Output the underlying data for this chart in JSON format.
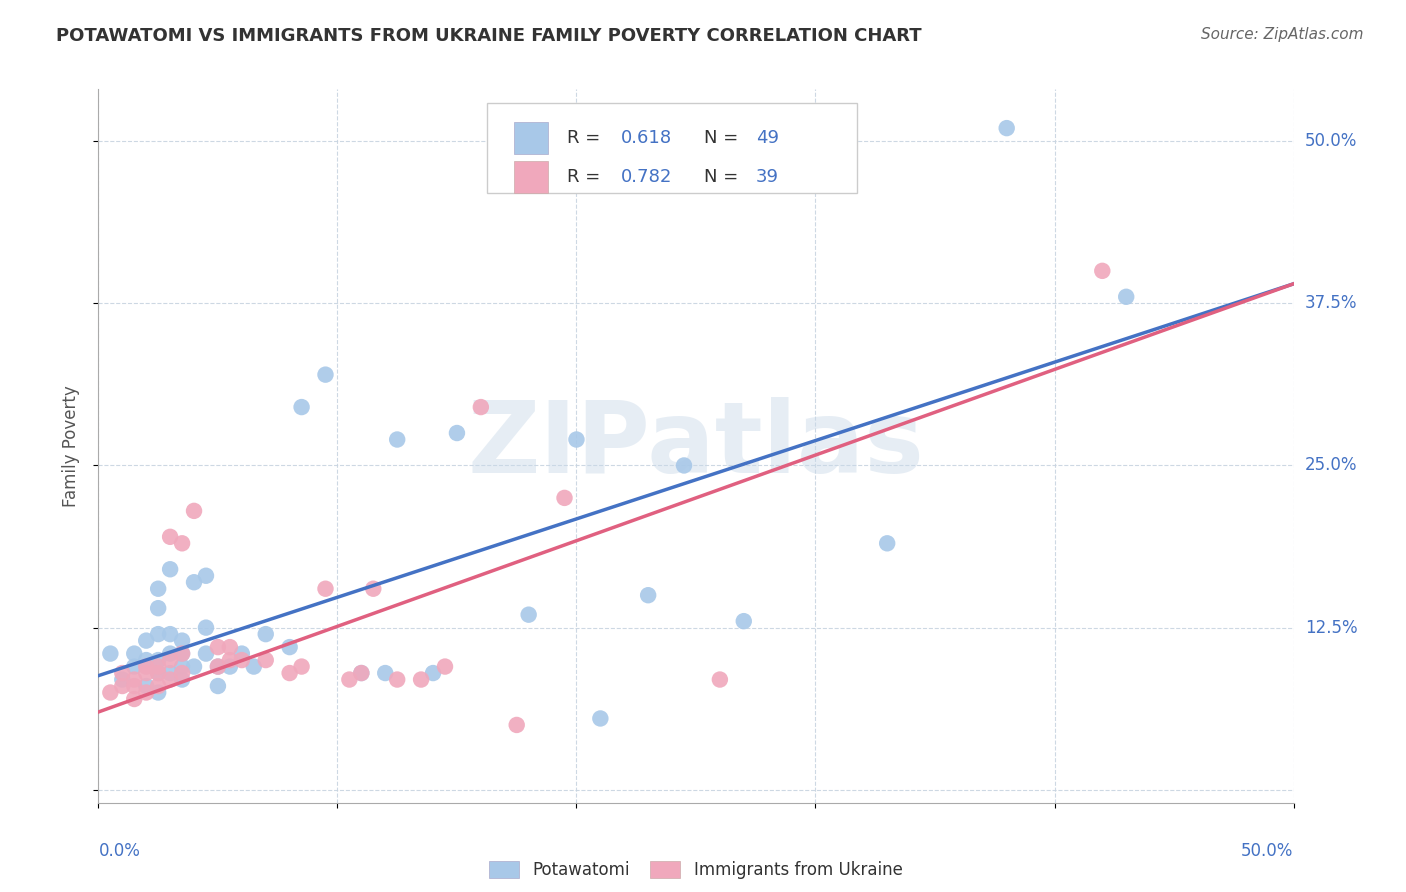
{
  "title": "POTAWATOMI VS IMMIGRANTS FROM UKRAINE FAMILY POVERTY CORRELATION CHART",
  "source": "Source: ZipAtlas.com",
  "ylabel": "Family Poverty",
  "watermark": "ZIPatlas",
  "xlim": [
    0.0,
    0.5
  ],
  "ylim": [
    -0.01,
    0.54
  ],
  "yticks": [
    0.0,
    0.125,
    0.25,
    0.375,
    0.5
  ],
  "ytick_labels": [
    "",
    "12.5%",
    "25.0%",
    "37.5%",
    "50.0%"
  ],
  "xtick_positions": [
    0.0,
    0.1,
    0.2,
    0.3,
    0.4,
    0.5
  ],
  "legend_line1": "R =  0.618   N = 49",
  "legend_line2": "R =  0.782   N = 39",
  "legend_R1": " 0.618",
  "legend_N1": "49",
  "legend_R2": " 0.782",
  "legend_N2": "39",
  "blue_color": "#a8c8e8",
  "pink_color": "#f0a8bc",
  "blue_line_color": "#4472c4",
  "pink_line_color": "#e06080",
  "text_blue": "#4472c4",
  "text_dark": "#333333",
  "grid_color": "#c8d4e0",
  "background": "#ffffff",
  "blue_scatter": [
    [
      0.005,
      0.105
    ],
    [
      0.01,
      0.085
    ],
    [
      0.015,
      0.095
    ],
    [
      0.015,
      0.105
    ],
    [
      0.02,
      0.08
    ],
    [
      0.02,
      0.1
    ],
    [
      0.02,
      0.115
    ],
    [
      0.025,
      0.075
    ],
    [
      0.025,
      0.09
    ],
    [
      0.025,
      0.1
    ],
    [
      0.025,
      0.12
    ],
    [
      0.025,
      0.14
    ],
    [
      0.025,
      0.155
    ],
    [
      0.03,
      0.09
    ],
    [
      0.03,
      0.105
    ],
    [
      0.03,
      0.12
    ],
    [
      0.03,
      0.17
    ],
    [
      0.035,
      0.085
    ],
    [
      0.035,
      0.095
    ],
    [
      0.035,
      0.105
    ],
    [
      0.035,
      0.115
    ],
    [
      0.04,
      0.095
    ],
    [
      0.04,
      0.16
    ],
    [
      0.045,
      0.105
    ],
    [
      0.045,
      0.125
    ],
    [
      0.045,
      0.165
    ],
    [
      0.05,
      0.08
    ],
    [
      0.05,
      0.095
    ],
    [
      0.055,
      0.095
    ],
    [
      0.06,
      0.105
    ],
    [
      0.065,
      0.095
    ],
    [
      0.07,
      0.12
    ],
    [
      0.08,
      0.11
    ],
    [
      0.085,
      0.295
    ],
    [
      0.095,
      0.32
    ],
    [
      0.11,
      0.09
    ],
    [
      0.12,
      0.09
    ],
    [
      0.125,
      0.27
    ],
    [
      0.14,
      0.09
    ],
    [
      0.15,
      0.275
    ],
    [
      0.18,
      0.135
    ],
    [
      0.2,
      0.27
    ],
    [
      0.21,
      0.055
    ],
    [
      0.23,
      0.15
    ],
    [
      0.245,
      0.25
    ],
    [
      0.27,
      0.13
    ],
    [
      0.33,
      0.19
    ],
    [
      0.38,
      0.51
    ],
    [
      0.43,
      0.38
    ]
  ],
  "pink_scatter": [
    [
      0.005,
      0.075
    ],
    [
      0.01,
      0.08
    ],
    [
      0.01,
      0.09
    ],
    [
      0.015,
      0.07
    ],
    [
      0.015,
      0.08
    ],
    [
      0.015,
      0.085
    ],
    [
      0.02,
      0.075
    ],
    [
      0.02,
      0.09
    ],
    [
      0.02,
      0.095
    ],
    [
      0.025,
      0.08
    ],
    [
      0.025,
      0.09
    ],
    [
      0.025,
      0.095
    ],
    [
      0.03,
      0.085
    ],
    [
      0.03,
      0.1
    ],
    [
      0.03,
      0.195
    ],
    [
      0.035,
      0.09
    ],
    [
      0.035,
      0.105
    ],
    [
      0.035,
      0.19
    ],
    [
      0.04,
      0.215
    ],
    [
      0.05,
      0.095
    ],
    [
      0.05,
      0.11
    ],
    [
      0.055,
      0.1
    ],
    [
      0.055,
      0.11
    ],
    [
      0.06,
      0.1
    ],
    [
      0.07,
      0.1
    ],
    [
      0.08,
      0.09
    ],
    [
      0.085,
      0.095
    ],
    [
      0.095,
      0.155
    ],
    [
      0.105,
      0.085
    ],
    [
      0.115,
      0.155
    ],
    [
      0.125,
      0.085
    ],
    [
      0.135,
      0.085
    ],
    [
      0.145,
      0.095
    ],
    [
      0.16,
      0.295
    ],
    [
      0.175,
      0.05
    ],
    [
      0.195,
      0.225
    ],
    [
      0.26,
      0.085
    ],
    [
      0.42,
      0.4
    ],
    [
      0.11,
      0.09
    ]
  ],
  "blue_line_x": [
    0.0,
    0.5
  ],
  "blue_line_y": [
    0.088,
    0.39
  ],
  "pink_line_x": [
    0.0,
    0.5
  ],
  "pink_line_y": [
    0.06,
    0.39
  ]
}
